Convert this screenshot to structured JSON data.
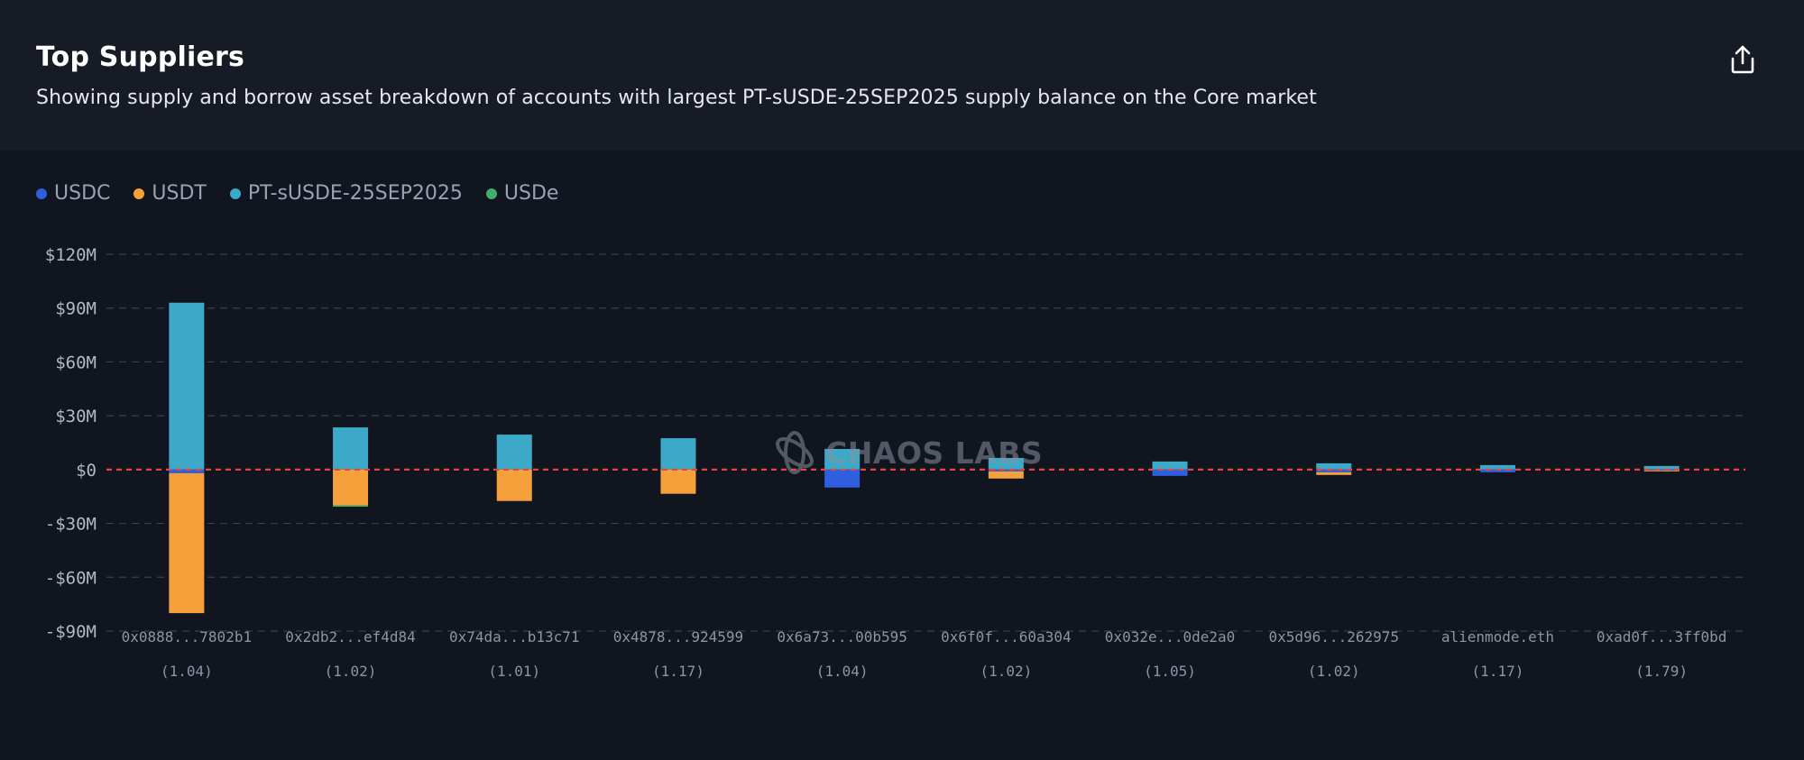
{
  "header": {
    "title": "Top Suppliers",
    "subtitle": "Showing supply and borrow asset breakdown of accounts with largest PT-sUSDE-25SEP2025 supply balance on the Core market",
    "share_icon": "share-icon"
  },
  "watermark": {
    "text": "CHAOS LABS",
    "icon": "chaos-labs-logo-icon"
  },
  "colors": {
    "USDC": "#2f5fe0",
    "USDT": "#f5a03a",
    "PT-sUSDE-25SEP2025": "#3da9c9",
    "USDe": "#3fae6b",
    "zero_line": "#e2483c",
    "grid": "#3a3f4c",
    "tick": "#b3b8c3",
    "category": "#8e94a2"
  },
  "chart_data": {
    "type": "bar",
    "stacked": true,
    "legend": [
      "USDC",
      "USDT",
      "PT-sUSDE-25SEP2025",
      "USDe"
    ],
    "legend_position": "top-left",
    "ylim": [
      -90,
      120
    ],
    "yticks": [
      120,
      90,
      60,
      30,
      0,
      -30,
      -60,
      -90
    ],
    "ytick_labels": [
      "$120M",
      "$90M",
      "$60M",
      "$30M",
      "$0",
      "-$30M",
      "-$60M",
      "-$90M"
    ],
    "grid": true,
    "categories": [
      "0x0888...7802b1",
      "0x2db2...ef4d84",
      "0x74da...b13c71",
      "0x4878...924599",
      "0x6a73...00b595",
      "0x6f0f...60a304",
      "0x032e...0de2a0",
      "0x5d96...262975",
      "alienmode.eth",
      "0xad0f...3ff0bd"
    ],
    "category_sublabels": [
      "(1.04)",
      "(1.02)",
      "(1.01)",
      "(1.17)",
      "(1.04)",
      "(1.02)",
      "(1.05)",
      "(1.02)",
      "(1.17)",
      "(1.79)"
    ],
    "series": [
      {
        "name": "PT-sUSDE-25SEP2025",
        "values": [
          93,
          23.5,
          19.5,
          17.5,
          11.5,
          6.5,
          4.5,
          3.5,
          2.5,
          2
        ]
      },
      {
        "name": "USDC",
        "values": [
          -2,
          0,
          0,
          0,
          -10,
          -1,
          -3.5,
          -1.5,
          -1.5,
          -0.5
        ]
      },
      {
        "name": "USDT",
        "values": [
          -78,
          -20,
          -17.5,
          -13.5,
          0,
          -4,
          0,
          -1.5,
          0,
          -0.5
        ]
      },
      {
        "name": "USDe",
        "values": [
          0,
          -0.7,
          0,
          0,
          0,
          0,
          0,
          0,
          0,
          0
        ]
      }
    ]
  }
}
